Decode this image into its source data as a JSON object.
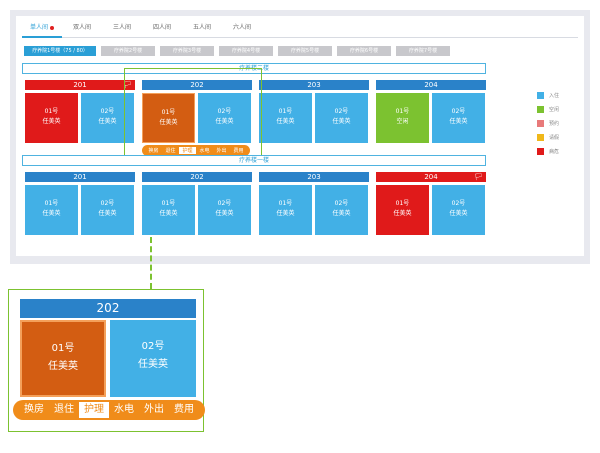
{
  "tabs": [
    {
      "label": "单人间",
      "active": true,
      "dot": true
    },
    {
      "label": "双人间"
    },
    {
      "label": "三人间"
    },
    {
      "label": "四人间"
    },
    {
      "label": "五人间"
    },
    {
      "label": "六人间"
    }
  ],
  "buildings": [
    {
      "label": "疗养院1号楼（75 / 80）",
      "active": true
    },
    {
      "label": "疗养院2号楼"
    },
    {
      "label": "疗养院3号楼"
    },
    {
      "label": "疗养院4号楼"
    },
    {
      "label": "疗养院5号楼"
    },
    {
      "label": "疗养院6号楼"
    },
    {
      "label": "疗养院7号楼"
    }
  ],
  "floors": [
    {
      "title": "疗养楼二楼"
    },
    {
      "title": "疗养楼一楼"
    }
  ],
  "rooms": {
    "f2": [
      {
        "no": "201",
        "bed1": {
          "no": "01号",
          "name": "任美英"
        },
        "bed2": {
          "no": "02号",
          "name": "任美英"
        }
      },
      {
        "no": "202",
        "bed1": {
          "no": "01号",
          "name": "任美英"
        },
        "bed2": {
          "no": "02号",
          "name": "任美英"
        }
      },
      {
        "no": "203",
        "bed1": {
          "no": "01号",
          "name": "任美英"
        },
        "bed2": {
          "no": "02号",
          "name": "任美英"
        }
      },
      {
        "no": "204",
        "bed1": {
          "no": "01号",
          "name": "空闲"
        },
        "bed2": {
          "no": "02号",
          "name": "任美英"
        }
      }
    ],
    "f1": [
      {
        "no": "201",
        "bed1": {
          "no": "01号",
          "name": "任美英"
        },
        "bed2": {
          "no": "02号",
          "name": "任美英"
        }
      },
      {
        "no": "202",
        "bed1": {
          "no": "01号",
          "name": "任美英"
        },
        "bed2": {
          "no": "02号",
          "name": "任美英"
        }
      },
      {
        "no": "203",
        "bed1": {
          "no": "01号",
          "name": "任美英"
        },
        "bed2": {
          "no": "02号",
          "name": "任美英"
        }
      },
      {
        "no": "204",
        "bed1": {
          "no": "01号",
          "name": "任美英"
        },
        "bed2": {
          "no": "02号",
          "name": "任美英"
        }
      }
    ]
  },
  "menu": [
    "换房",
    "退住",
    "护理",
    "水电",
    "外出",
    "费用"
  ],
  "legend": [
    {
      "label": "入住",
      "color": "#42b0e6"
    },
    {
      "label": "空闲",
      "color": "#7cc230"
    },
    {
      "label": "预约",
      "color": "#e87a7a"
    },
    {
      "label": "请假",
      "color": "#f0b81a"
    },
    {
      "label": "病危",
      "color": "#e01a1a"
    }
  ],
  "zoom": {
    "room": "202",
    "bed1": {
      "no": "01号",
      "name": "任美英"
    },
    "bed2": {
      "no": "02号",
      "name": "任美英"
    }
  }
}
